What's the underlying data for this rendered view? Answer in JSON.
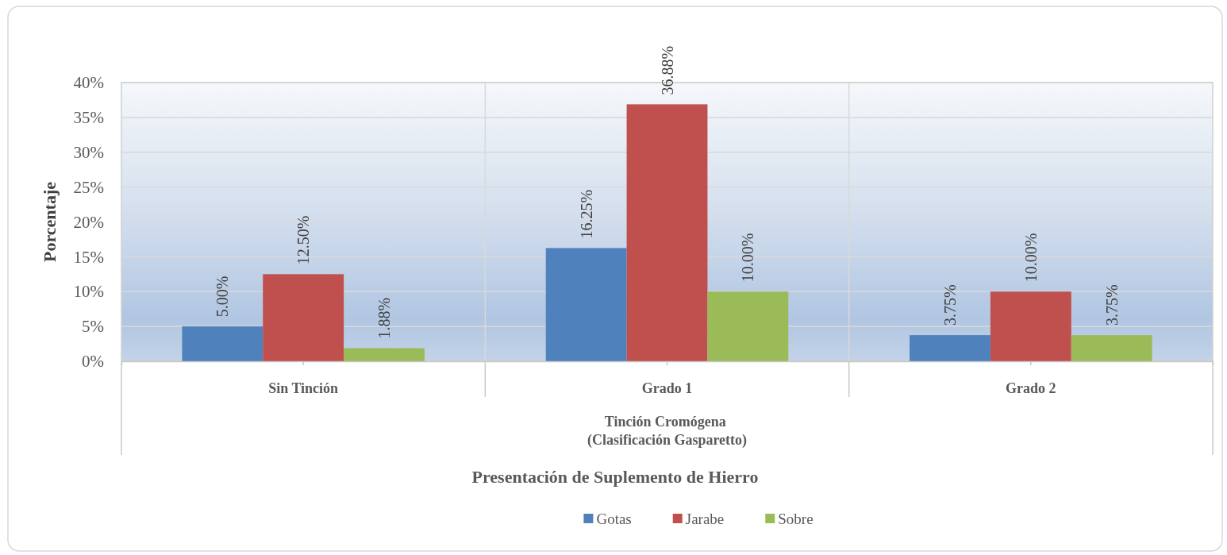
{
  "chart_data": {
    "type": "bar",
    "ylabel": "Porcentaje",
    "xlabel": "Presentación de Suplemento de Hierro",
    "annotations": [
      "Tinción Cromógena (Clasificación Gasparetto)"
    ],
    "categories": [
      "Sin Tinción",
      "Grado 1",
      "Grado 2"
    ],
    "series": [
      {
        "name": "Gotas",
        "color": "#4f81bd",
        "values": [
          5,
          16.25,
          3.75
        ],
        "value_labels": [
          "5.00%",
          "16.25%",
          "3.75%"
        ]
      },
      {
        "name": "Jarabe",
        "color": "#c0504d",
        "values": [
          12.5,
          36.88,
          10
        ],
        "value_labels": [
          "12.50%",
          "36.88%",
          "10.00%"
        ]
      },
      {
        "name": "Sobre",
        "color": "#9bbb59",
        "values": [
          1.88,
          10,
          3.75
        ],
        "value_labels": [
          "1.88%",
          "10.00%",
          "3.75%"
        ]
      }
    ],
    "ylim": [
      0,
      40
    ],
    "yticks": [
      {
        "value": 0,
        "label": "0%"
      },
      {
        "value": 5,
        "label": "5%"
      },
      {
        "value": 10,
        "label": "10%"
      },
      {
        "value": 15,
        "label": "15%"
      },
      {
        "value": 20,
        "label": "20%"
      },
      {
        "value": 25,
        "label": "25%"
      },
      {
        "value": 30,
        "label": "30%"
      },
      {
        "value": 35,
        "label": "35%"
      },
      {
        "value": 40,
        "label": "40%"
      }
    ],
    "grid": true,
    "legend": "bottom"
  }
}
